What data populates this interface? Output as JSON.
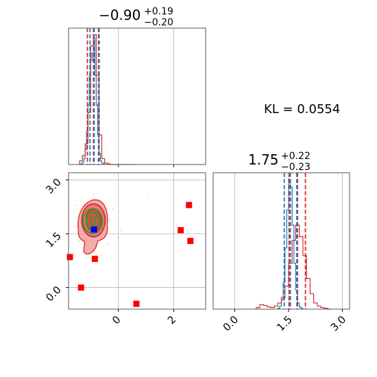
{
  "chart_data": [
    {
      "type": "histogram",
      "panel": "top-left",
      "title_main": "−0.90",
      "title_plus": "+0.19",
      "title_minus": "−0.20",
      "xlim": [
        -1.8,
        3.15
      ],
      "grid": true,
      "quantile_lines": {
        "blue": [
          -1.05,
          -0.9,
          -0.72
        ],
        "red": [
          -1.12,
          -0.9,
          -0.72
        ]
      },
      "series": [
        {
          "name": "",
          "color": "#1f77b4",
          "bins": [
            -1.4,
            -1.35,
            -1.3,
            -1.25,
            -1.2,
            -1.15,
            -1.1,
            -1.05,
            -1.0,
            -0.95,
            -0.9,
            -0.85,
            -0.8,
            -0.75,
            -0.7,
            -0.65,
            -0.6,
            -0.55,
            -0.5
          ],
          "counts": [
            0,
            1,
            3,
            8,
            20,
            45,
            80,
            120,
            150,
            140,
            170,
            120,
            80,
            40,
            15,
            5,
            2,
            1
          ]
        },
        {
          "name": "",
          "color": "#d62728",
          "bins": [
            -1.4,
            -1.3,
            -1.2,
            -1.1,
            -1.0,
            -0.9,
            -0.8,
            -0.7,
            -0.6,
            -0.5,
            -0.4,
            -0.3,
            -0.2,
            -0.1,
            0.0,
            0.1,
            0.2,
            0.3,
            0.4,
            0.5,
            0.6
          ],
          "counts": [
            5,
            12,
            28,
            70,
            160,
            175,
            120,
            40,
            8,
            2,
            1,
            0,
            0,
            0,
            0,
            0,
            0,
            0,
            0,
            0
          ]
        }
      ]
    },
    {
      "type": "scatter",
      "panel": "bottom-left",
      "xlim": [
        -1.8,
        3.15
      ],
      "ylim": [
        -0.6,
        3.2
      ],
      "xticks": [
        "0",
        "2"
      ],
      "yticks": [
        "0.0",
        "1.5",
        "3.0"
      ],
      "ytick_values": [
        0.0,
        1.5,
        3.0
      ],
      "xtick_values": [
        0.0,
        2.0
      ],
      "grid": true,
      "contour_center": [
        -0.9,
        1.72
      ],
      "red_points": [
        {
          "x": 2.55,
          "y": 2.3
        },
        {
          "x": 2.25,
          "y": 1.6
        },
        {
          "x": 2.6,
          "y": 1.3
        },
        {
          "x": -1.75,
          "y": 0.85
        },
        {
          "x": -0.85,
          "y": 0.8
        },
        {
          "x": -1.35,
          "y": 0.0
        },
        {
          "x": 0.65,
          "y": -0.45
        }
      ],
      "blue_point": {
        "x": -0.88,
        "y": 1.62
      }
    },
    {
      "type": "histogram",
      "panel": "bottom-right",
      "title_main": "1.75",
      "title_plus": "+0.22",
      "title_minus": "−0.23",
      "xlim": [
        -0.6,
        3.2
      ],
      "xticks": [
        "0.0",
        "1.5",
        "3.0"
      ],
      "xtick_values": [
        0.0,
        1.5,
        3.0
      ],
      "grid": true,
      "quantile_lines": {
        "blue": [
          1.38,
          1.55,
          1.73
        ],
        "red": [
          1.52,
          1.75,
          1.97
        ]
      },
      "series": [
        {
          "name": "",
          "color": "#1f77b4",
          "bins": [
            1.2,
            1.25,
            1.3,
            1.35,
            1.4,
            1.45,
            1.5,
            1.55,
            1.6,
            1.65,
            1.7,
            1.75,
            1.8,
            1.85,
            1.9
          ],
          "counts": [
            1,
            4,
            12,
            35,
            80,
            130,
            170,
            160,
            110,
            60,
            25,
            8,
            3,
            1
          ]
        },
        {
          "name": "",
          "color": "#d62728",
          "bins": [
            0.6,
            0.7,
            0.8,
            0.9,
            1.0,
            1.1,
            1.2,
            1.3,
            1.4,
            1.5,
            1.6,
            1.7,
            1.8,
            1.9,
            2.0,
            2.1,
            2.2,
            2.3,
            2.4,
            2.5,
            2.6,
            2.7
          ],
          "counts": [
            2,
            6,
            5,
            3,
            2,
            4,
            8,
            15,
            30,
            60,
            90,
            110,
            95,
            70,
            40,
            20,
            8,
            4,
            2,
            1,
            0
          ]
        }
      ]
    }
  ],
  "annotation": {
    "kl_text": "KL = 0.0554"
  },
  "colors": {
    "blue": "#1f77b4",
    "red": "#d62728",
    "green": "#2ca02c",
    "grid": "#b0b0b0",
    "fill_red": "#f4a8a8"
  }
}
